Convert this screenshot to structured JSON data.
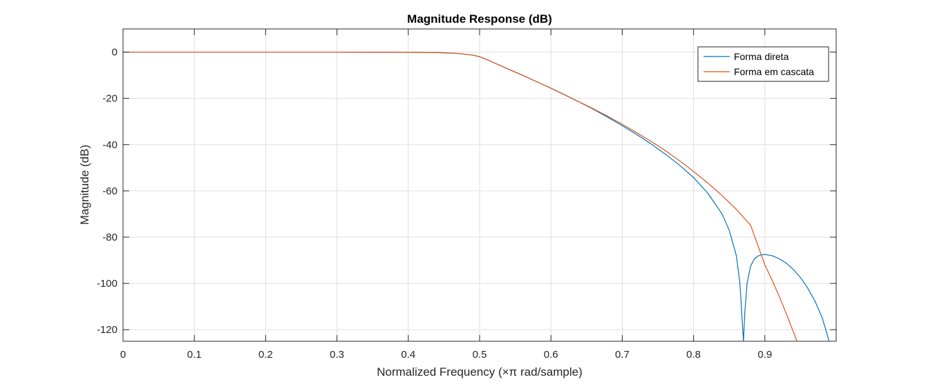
{
  "chart_data": {
    "type": "line",
    "title": "Magnitude Response (dB)",
    "xlabel": "Normalized Frequency (×π rad/sample)",
    "ylabel": "Magnitude (dB)",
    "xlim": [
      0,
      1
    ],
    "ylim": [
      -125,
      10
    ],
    "xticks": [
      0,
      0.1,
      0.2,
      0.3,
      0.4,
      0.5,
      0.6,
      0.7,
      0.8,
      0.9
    ],
    "xtick_labels": [
      "0",
      "0.1",
      "0.2",
      "0.3",
      "0.4",
      "0.5",
      "0.6",
      "0.7",
      "0.8",
      "0.9"
    ],
    "yticks": [
      0,
      -20,
      -40,
      -60,
      -80,
      -100,
      -120
    ],
    "ytick_labels": [
      "0",
      "-20",
      "-40",
      "-60",
      "-80",
      "-100",
      "-120"
    ],
    "grid": true,
    "legend_position": "top-right",
    "series": [
      {
        "name": "Forma direta",
        "color": "#0072BD",
        "x": [
          0,
          0.1,
          0.2,
          0.3,
          0.4,
          0.44,
          0.47,
          0.49,
          0.5,
          0.51,
          0.52,
          0.54,
          0.56,
          0.58,
          0.6,
          0.62,
          0.64,
          0.66,
          0.68,
          0.7,
          0.72,
          0.74,
          0.76,
          0.78,
          0.8,
          0.82,
          0.84,
          0.85,
          0.86,
          0.865,
          0.868,
          0.87,
          0.872,
          0.875,
          0.88,
          0.885,
          0.89,
          0.895,
          0.9,
          0.91,
          0.92,
          0.93,
          0.94,
          0.95,
          0.96,
          0.97,
          0.98,
          0.985,
          0.99
        ],
        "y": [
          0,
          0,
          0,
          0,
          -0.1,
          -0.2,
          -0.6,
          -1.3,
          -2.0,
          -3.2,
          -4.6,
          -7.3,
          -10.0,
          -12.8,
          -15.6,
          -18.6,
          -21.6,
          -24.8,
          -28.2,
          -31.8,
          -35.6,
          -39.6,
          -44.0,
          -48.8,
          -54.2,
          -61.0,
          -70.0,
          -77.0,
          -88.0,
          -100.0,
          -115.0,
          -125.0,
          -112.0,
          -100.0,
          -92.5,
          -89.5,
          -88.2,
          -87.6,
          -87.5,
          -88.0,
          -89.3,
          -91.2,
          -94.0,
          -97.5,
          -102.0,
          -107.5,
          -114.5,
          -119.5,
          -125.0
        ]
      },
      {
        "name": "Forma em cascata",
        "color": "#D95319",
        "x": [
          0,
          0.1,
          0.2,
          0.3,
          0.4,
          0.44,
          0.47,
          0.49,
          0.5,
          0.51,
          0.52,
          0.54,
          0.56,
          0.58,
          0.6,
          0.62,
          0.64,
          0.66,
          0.68,
          0.7,
          0.72,
          0.74,
          0.76,
          0.78,
          0.8,
          0.82,
          0.84,
          0.86,
          0.88,
          0.9,
          0.91,
          0.92,
          0.93,
          0.94,
          0.945
        ],
        "y": [
          0,
          0,
          0,
          0,
          -0.1,
          -0.2,
          -0.6,
          -1.3,
          -2.0,
          -3.2,
          -4.6,
          -7.3,
          -10.0,
          -12.8,
          -15.6,
          -18.6,
          -21.6,
          -24.6,
          -27.8,
          -31.2,
          -34.8,
          -38.5,
          -42.5,
          -46.9,
          -51.6,
          -56.6,
          -62.0,
          -68.0,
          -74.8,
          -92.0,
          -98.5,
          -105.5,
          -113.0,
          -121.0,
          -125.0
        ]
      }
    ]
  }
}
